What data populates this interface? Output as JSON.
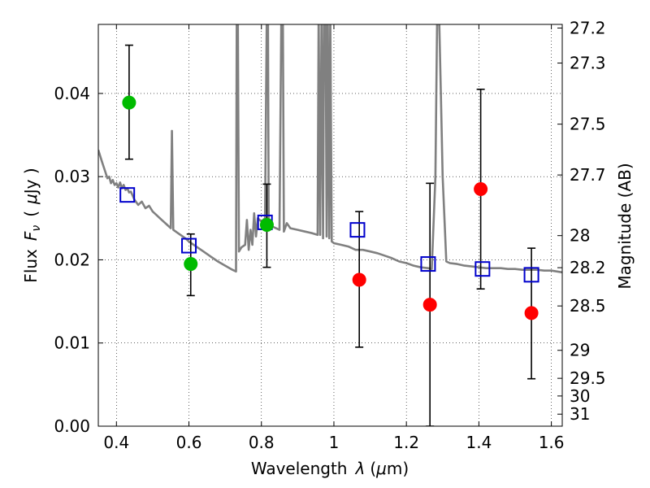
{
  "chart_data": {
    "type": "scatter",
    "xlabel_main": "Wavelength",
    "xlabel_symbol": "λ",
    "xlabel_unit_open": "(",
    "xlabel_unit_mu": "μ",
    "xlabel_unit_rest": "m)",
    "ylabel_main": "Flux",
    "ylabel_symbol": "F",
    "ylabel_symbol_sub": "ν",
    "ylabel_unit_open": "(",
    "ylabel_unit_mu": "μ",
    "ylabel_unit_rest": "Jy )",
    "y2label": "Magnitude (AB)",
    "xlim": [
      0.35,
      1.63
    ],
    "ylim": [
      0.0,
      0.0483
    ],
    "grid": true,
    "xticks": [
      {
        "v": 0.4,
        "label": "0.4"
      },
      {
        "v": 0.6,
        "label": "0.6"
      },
      {
        "v": 0.8,
        "label": "0.8"
      },
      {
        "v": 1.0,
        "label": "1"
      },
      {
        "v": 1.2,
        "label": "1.2"
      },
      {
        "v": 1.4,
        "label": "1.4"
      },
      {
        "v": 1.6,
        "label": "1.6"
      }
    ],
    "yticks": [
      {
        "v": 0.0,
        "label": "0.00"
      },
      {
        "v": 0.01,
        "label": "0.01"
      },
      {
        "v": 0.02,
        "label": "0.02"
      },
      {
        "v": 0.03,
        "label": "0.03"
      },
      {
        "v": 0.04,
        "label": "0.04"
      }
    ],
    "mag_ticks": [
      {
        "mag": 27.2,
        "label": "27.2"
      },
      {
        "mag": 27.3,
        "label": "27.3"
      },
      {
        "mag": 27.5,
        "label": "27.5"
      },
      {
        "mag": 27.7,
        "label": "27.7"
      },
      {
        "mag": 28.0,
        "label": "28"
      },
      {
        "mag": 28.2,
        "label": "28.2"
      },
      {
        "mag": 28.5,
        "label": "28.5"
      },
      {
        "mag": 29.0,
        "label": "29"
      },
      {
        "mag": 29.5,
        "label": "29.5"
      },
      {
        "mag": 30.0,
        "label": "30"
      },
      {
        "mag": 31.0,
        "label": "31"
      }
    ],
    "sed_model": {
      "color": "#808080",
      "points": [
        [
          0.35,
          0.0332
        ],
        [
          0.36,
          0.0318
        ],
        [
          0.37,
          0.0305
        ],
        [
          0.375,
          0.0298
        ],
        [
          0.38,
          0.03
        ],
        [
          0.385,
          0.0292
        ],
        [
          0.39,
          0.0296
        ],
        [
          0.395,
          0.029
        ],
        [
          0.4,
          0.0292
        ],
        [
          0.405,
          0.0287
        ],
        [
          0.41,
          0.0293
        ],
        [
          0.415,
          0.0286
        ],
        [
          0.42,
          0.029
        ],
        [
          0.425,
          0.0284
        ],
        [
          0.43,
          0.0286
        ],
        [
          0.435,
          0.0281
        ],
        [
          0.44,
          0.0282
        ],
        [
          0.45,
          0.0272
        ],
        [
          0.46,
          0.0266
        ],
        [
          0.47,
          0.027
        ],
        [
          0.48,
          0.0262
        ],
        [
          0.49,
          0.0265
        ],
        [
          0.5,
          0.0258
        ],
        [
          0.51,
          0.0254
        ],
        [
          0.52,
          0.025
        ],
        [
          0.53,
          0.0246
        ],
        [
          0.54,
          0.0242
        ],
        [
          0.55,
          0.0238
        ],
        [
          0.553,
          0.0355
        ],
        [
          0.557,
          0.0236
        ],
        [
          0.57,
          0.0232
        ],
        [
          0.58,
          0.0229
        ],
        [
          0.59,
          0.0226
        ],
        [
          0.6,
          0.0222
        ],
        [
          0.62,
          0.0216
        ],
        [
          0.64,
          0.021
        ],
        [
          0.66,
          0.0204
        ],
        [
          0.68,
          0.0198
        ],
        [
          0.7,
          0.0193
        ],
        [
          0.72,
          0.0188
        ],
        [
          0.73,
          0.0186
        ],
        [
          0.732,
          0.05
        ],
        [
          0.735,
          0.05
        ],
        [
          0.738,
          0.021
        ],
        [
          0.745,
          0.0215
        ],
        [
          0.755,
          0.0218
        ],
        [
          0.76,
          0.0248
        ],
        [
          0.765,
          0.0212
        ],
        [
          0.77,
          0.0236
        ],
        [
          0.775,
          0.0218
        ],
        [
          0.78,
          0.0256
        ],
        [
          0.785,
          0.0228
        ],
        [
          0.79,
          0.025
        ],
        [
          0.8,
          0.0246
        ],
        [
          0.81,
          0.025
        ],
        [
          0.815,
          0.05
        ],
        [
          0.818,
          0.05
        ],
        [
          0.82,
          0.0244
        ],
        [
          0.83,
          0.024
        ],
        [
          0.84,
          0.0238
        ],
        [
          0.85,
          0.0236
        ],
        [
          0.855,
          0.05
        ],
        [
          0.859,
          0.05
        ],
        [
          0.862,
          0.0234
        ],
        [
          0.87,
          0.0244
        ],
        [
          0.88,
          0.0238
        ],
        [
          0.9,
          0.0236
        ],
        [
          0.92,
          0.0234
        ],
        [
          0.94,
          0.0232
        ],
        [
          0.955,
          0.023
        ],
        [
          0.958,
          0.05
        ],
        [
          0.962,
          0.023
        ],
        [
          0.966,
          0.05
        ],
        [
          0.97,
          0.0226
        ],
        [
          0.973,
          0.05
        ],
        [
          0.977,
          0.05
        ],
        [
          0.98,
          0.0228
        ],
        [
          0.983,
          0.05
        ],
        [
          0.987,
          0.0226
        ],
        [
          0.99,
          0.05
        ],
        [
          0.994,
          0.0222
        ],
        [
          1.0,
          0.022
        ],
        [
          1.02,
          0.0218
        ],
        [
          1.04,
          0.0216
        ],
        [
          1.06,
          0.0212
        ],
        [
          1.08,
          0.0212
        ],
        [
          1.1,
          0.021
        ],
        [
          1.12,
          0.0208
        ],
        [
          1.14,
          0.0205
        ],
        [
          1.16,
          0.0202
        ],
        [
          1.18,
          0.0198
        ],
        [
          1.2,
          0.0196
        ],
        [
          1.22,
          0.0193
        ],
        [
          1.24,
          0.0191
        ],
        [
          1.26,
          0.019
        ],
        [
          1.27,
          0.0189
        ],
        [
          1.28,
          0.03
        ],
        [
          1.285,
          0.05
        ],
        [
          1.29,
          0.05
        ],
        [
          1.295,
          0.04
        ],
        [
          1.3,
          0.03
        ],
        [
          1.31,
          0.0198
        ],
        [
          1.32,
          0.0196
        ],
        [
          1.34,
          0.0195
        ],
        [
          1.36,
          0.0193
        ],
        [
          1.38,
          0.0192
        ],
        [
          1.4,
          0.0191
        ],
        [
          1.42,
          0.019
        ],
        [
          1.44,
          0.019
        ],
        [
          1.46,
          0.019
        ],
        [
          1.48,
          0.0189
        ],
        [
          1.5,
          0.0189
        ],
        [
          1.52,
          0.0188
        ],
        [
          1.54,
          0.0188
        ],
        [
          1.56,
          0.0188
        ],
        [
          1.58,
          0.0187
        ],
        [
          1.6,
          0.0187
        ],
        [
          1.63,
          0.0185
        ]
      ]
    },
    "model_flux": {
      "marker": "open-square",
      "color": "#0000cc",
      "points": [
        {
          "x": 0.43,
          "y": 0.0278
        },
        {
          "x": 0.6,
          "y": 0.0217
        },
        {
          "x": 0.81,
          "y": 0.0245
        },
        {
          "x": 1.065,
          "y": 0.0236
        },
        {
          "x": 1.26,
          "y": 0.0195
        },
        {
          "x": 1.41,
          "y": 0.0189
        },
        {
          "x": 1.545,
          "y": 0.0182
        }
      ]
    },
    "observed": [
      {
        "x": 0.435,
        "y": 0.0389,
        "err_lo": 0.0068,
        "err_hi": 0.0069,
        "color": "#00bb00"
      },
      {
        "x": 0.605,
        "y": 0.0195,
        "err_lo": 0.0038,
        "err_hi": 0.0036,
        "color": "#00bb00"
      },
      {
        "x": 0.815,
        "y": 0.0242,
        "err_lo": 0.0051,
        "err_hi": 0.0049,
        "color": "#00bb00"
      },
      {
        "x": 1.07,
        "y": 0.0176,
        "err_lo": 0.0081,
        "err_hi": 0.0082,
        "color": "#ff0000"
      },
      {
        "x": 1.265,
        "y": 0.0146,
        "err_lo": 0.0146,
        "err_hi": 0.0146,
        "color": "#ff0000"
      },
      {
        "x": 1.405,
        "y": 0.0285,
        "err_lo": 0.012,
        "err_hi": 0.012,
        "color": "#ff0000"
      },
      {
        "x": 1.545,
        "y": 0.0136,
        "err_lo": 0.0079,
        "err_hi": 0.0078,
        "color": "#ff0000"
      }
    ]
  }
}
